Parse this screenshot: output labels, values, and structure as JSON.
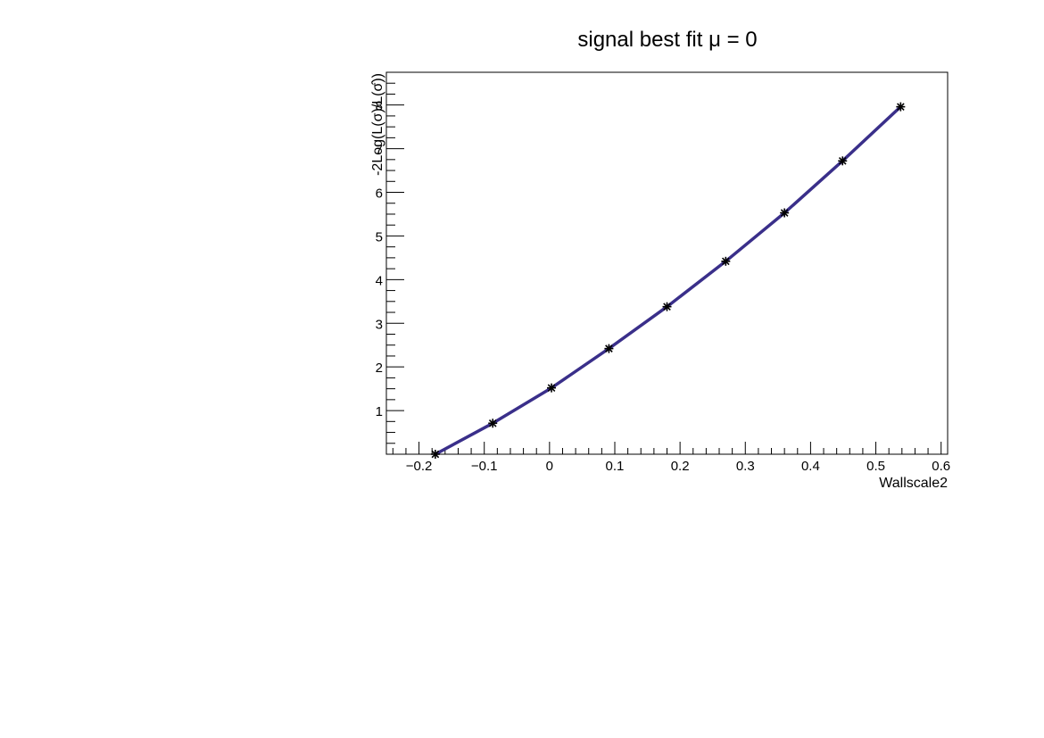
{
  "chart_data": {
    "type": "scatter",
    "title": "signal best fit μ = 0",
    "xlabel": "Wallscale2",
    "ylabel": "-2Log(L(σ)/L(σ̂))",
    "xlim": [
      -0.25,
      0.61
    ],
    "ylim": [
      0,
      8.75
    ],
    "x_ticks": [
      -0.2,
      -0.1,
      0,
      0.1,
      0.2,
      0.3,
      0.4,
      0.5,
      0.6
    ],
    "x_tick_labels": [
      "−0.2",
      "−0.1",
      "0",
      "0.1",
      "0.2",
      "0.3",
      "0.4",
      "0.5",
      "0.6"
    ],
    "y_ticks": [
      1,
      2,
      3,
      4,
      5,
      6,
      7,
      8
    ],
    "y_tick_labels": [
      "1",
      "2",
      "3",
      "4",
      "5",
      "6",
      "7",
      "8"
    ],
    "grid": false,
    "legend": "none",
    "series": [
      {
        "kind": "points",
        "marker": "star",
        "color": "#000000",
        "x": [
          -0.175,
          -0.087,
          0.003,
          0.091,
          0.18,
          0.27,
          0.36,
          0.449,
          0.538
        ],
        "y": [
          0.0,
          0.71,
          1.52,
          2.42,
          3.38,
          4.42,
          5.53,
          6.72,
          7.96
        ]
      },
      {
        "kind": "fit_curve",
        "color": "#3a2f8a",
        "x": [
          -0.175,
          -0.087,
          0.003,
          0.091,
          0.18,
          0.27,
          0.36,
          0.449,
          0.538
        ],
        "y": [
          0.0,
          0.71,
          1.52,
          2.42,
          3.38,
          4.42,
          5.53,
          6.72,
          7.96
        ]
      }
    ]
  }
}
